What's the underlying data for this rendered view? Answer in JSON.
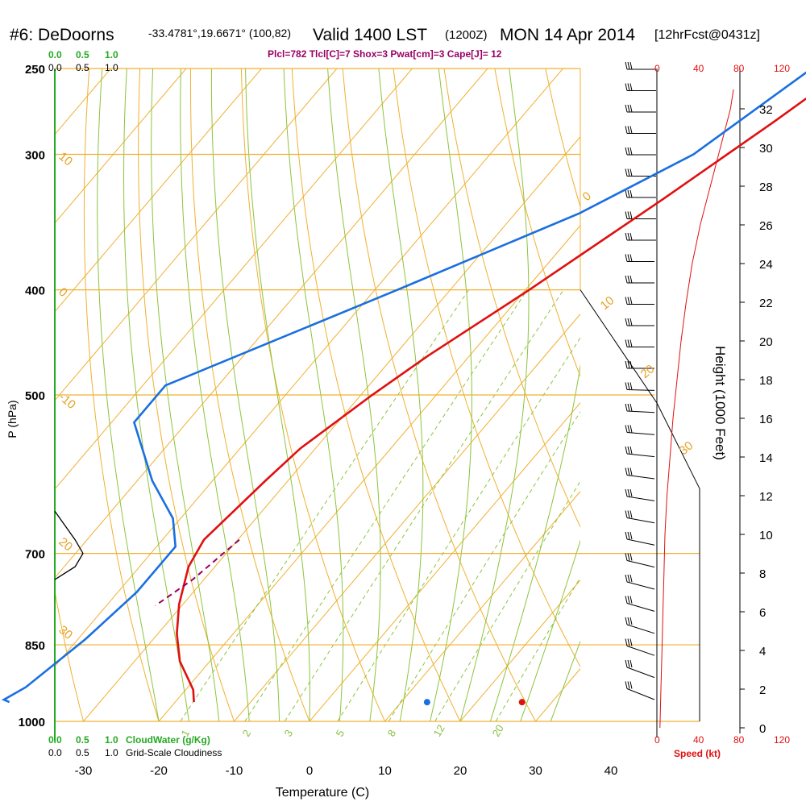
{
  "header": {
    "station": "#6: DeDoorns",
    "coords": "-33.4781°,19.6671° (100,82)",
    "valid": "Valid 1400 LST",
    "utc": "(1200Z)",
    "date": "MON 14 Apr 2014",
    "forecast": "[12hrFcst@0431z]"
  },
  "indices": "Plcl=782 Tlcl[C]=7 Shox=3 Pwat[cm]=3 Cape[J]= 12",
  "colors": {
    "temperature": "#e01010",
    "dewpoint": "#1a6fe0",
    "isotherm": "#f0b030",
    "dry_adiabat": "#f0b030",
    "moist_adiabat": "#8cc43c",
    "mixing_ratio": "#8cc43c",
    "parcel": "#990066",
    "cloudwater": "#22aa22",
    "speed": "#e01010"
  },
  "axes": {
    "xlabel": "Temperature (C)",
    "ylabel": "P (hPa)",
    "height_label": "Height (1000 Feet)",
    "speed_label": "Speed (kt)",
    "cloudwater_label": "CloudWater (g/Kg)",
    "cloudiness_label": "Grid-Scale Cloudiness"
  },
  "cloud_scale": {
    "green": [
      "0.0",
      "0.5",
      "1.0"
    ],
    "black": [
      "0.0",
      "0.5",
      "1.0"
    ]
  },
  "speed_ticks": [
    "0",
    "40",
    "80",
    "120"
  ],
  "chart_data": {
    "type": "line",
    "title": "",
    "xlabel": "Temperature (C)",
    "ylabel": "P (hPa)",
    "xlim": [
      -35,
      44
    ],
    "ylim": [
      1000,
      250
    ],
    "yscale": "log",
    "skew_t": true,
    "x_ticks": [
      -30,
      -20,
      -10,
      0,
      10,
      20,
      30,
      40
    ],
    "p_ticks": [
      250,
      300,
      400,
      500,
      700,
      850,
      1000
    ],
    "height_ticks_kft": [
      0,
      2,
      4,
      6,
      8,
      10,
      12,
      14,
      16,
      18,
      20,
      22,
      24,
      26,
      28,
      30,
      32
    ],
    "isotherm_labels": [
      -10,
      0,
      10,
      20,
      30
    ],
    "dry_adiabat_labels": [
      10,
      0,
      -10,
      20,
      30
    ],
    "mixing_ratio_labels": [
      1,
      2,
      3,
      5,
      8,
      12,
      20
    ],
    "series": [
      {
        "name": "temperature",
        "points": [
          [
            -2.2,
            250
          ],
          [
            -6,
            280
          ],
          [
            -12,
            330
          ],
          [
            -19.5,
            400
          ],
          [
            -25.5,
            460
          ],
          [
            -28.5,
            500
          ],
          [
            -32,
            560
          ],
          [
            -33,
            600
          ],
          [
            -34.5,
            680
          ],
          [
            -33.5,
            720
          ],
          [
            -30.5,
            780
          ],
          [
            -27.5,
            830
          ],
          [
            -24,
            880
          ],
          [
            -19,
            935
          ],
          [
            -17.5,
            960
          ]
        ]
      },
      {
        "name": "dewpoint",
        "points": [
          [
            -7,
            250
          ],
          [
            -13,
            300
          ],
          [
            -21.5,
            340
          ],
          [
            -37,
            400
          ],
          [
            -57,
            490
          ],
          [
            -57,
            530
          ],
          [
            -48,
            600
          ],
          [
            -41,
            650
          ],
          [
            -37.5,
            690
          ],
          [
            -37.5,
            760
          ],
          [
            -39,
            840
          ],
          [
            -41.5,
            930
          ],
          [
            -43,
            955
          ],
          [
            -42,
            960
          ]
        ]
      },
      {
        "name": "parcel",
        "points": [
          [
            -29.8,
            680
          ],
          [
            -31.5,
            740
          ],
          [
            -33.5,
            782
          ]
        ]
      }
    ],
    "surface": {
      "temperature": 28.2,
      "dewpoint": 15.6,
      "pressure": 960
    },
    "wind_speed_kt": [
      [
        3,
        0
      ],
      [
        4,
        2
      ],
      [
        5,
        4
      ],
      [
        6,
        6
      ],
      [
        7,
        8
      ],
      [
        8,
        10
      ],
      [
        10,
        12
      ],
      [
        13,
        14
      ],
      [
        16,
        16
      ],
      [
        20,
        18
      ],
      [
        24,
        20
      ],
      [
        29,
        22
      ],
      [
        35,
        24
      ],
      [
        43,
        26
      ],
      [
        53,
        28
      ],
      [
        63,
        30
      ],
      [
        73,
        32
      ],
      [
        76,
        33
      ]
    ],
    "cloudwater_gkg": [
      [
        0.0,
        640
      ],
      [
        0.36,
        680
      ],
      [
        0.5,
        700
      ],
      [
        0.36,
        720
      ],
      [
        0.0,
        740
      ]
    ]
  }
}
